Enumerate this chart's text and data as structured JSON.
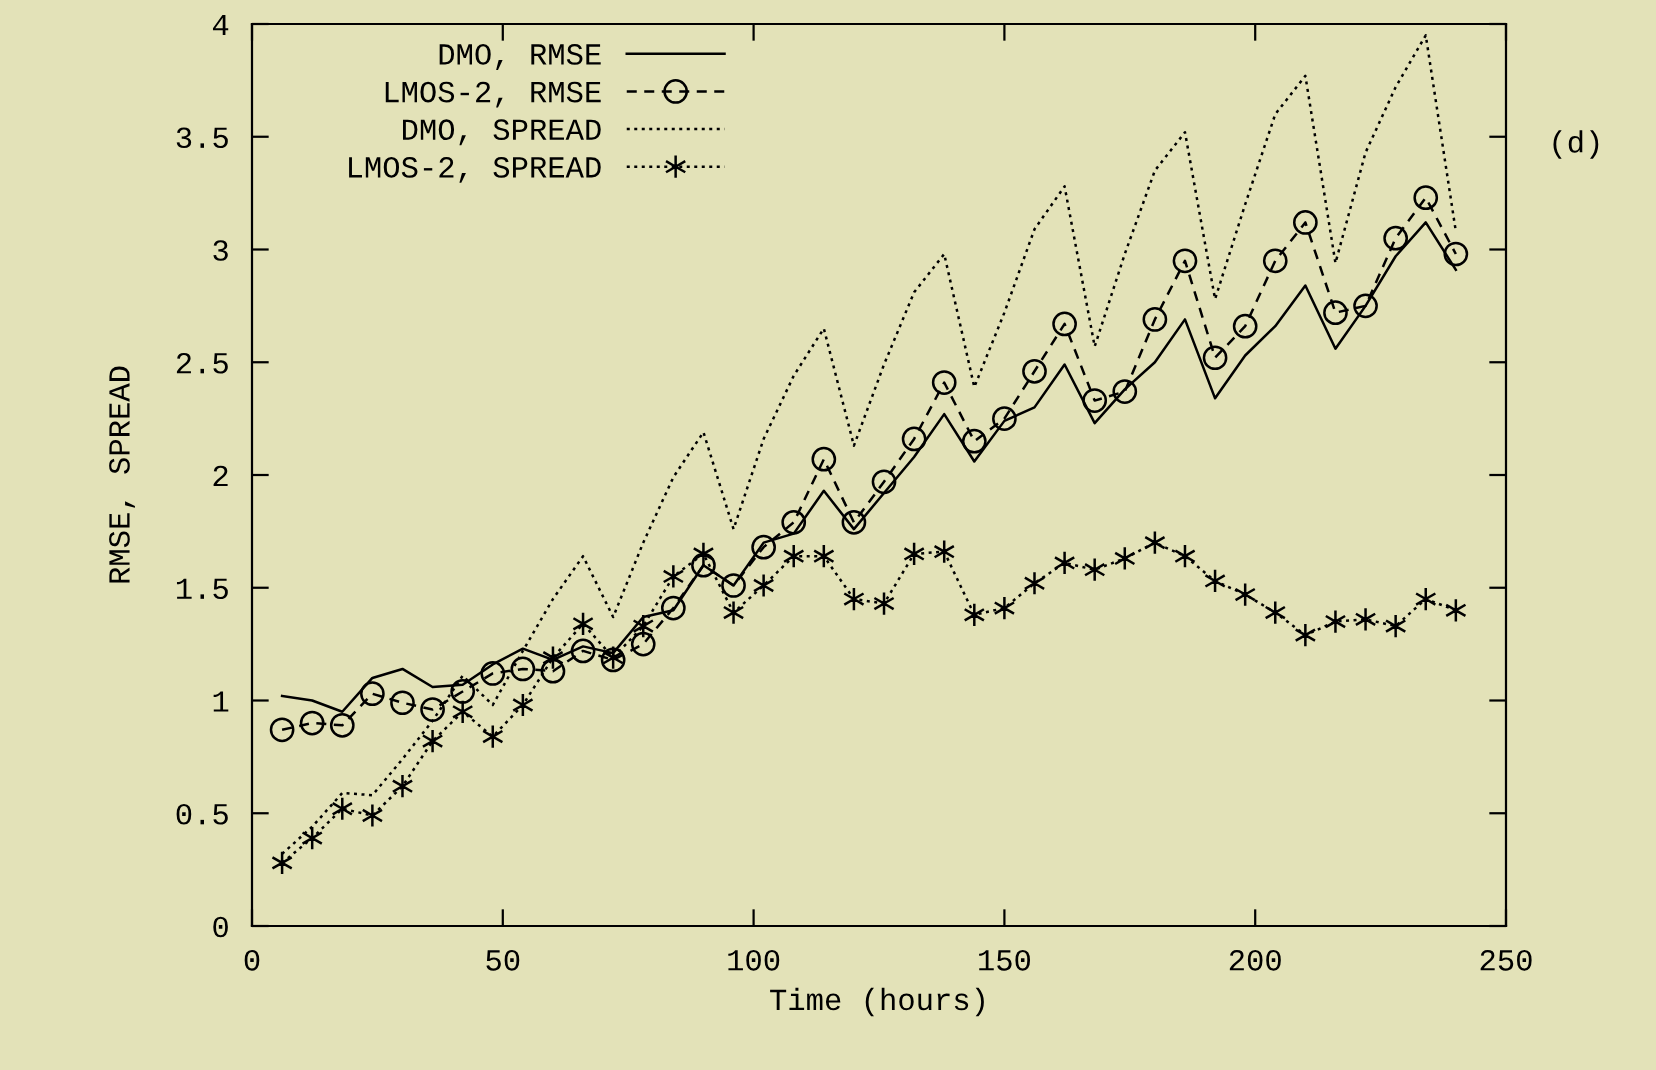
{
  "chart_data": {
    "type": "line",
    "xlabel": "Time (hours)",
    "ylabel": "RMSE, SPREAD",
    "annotations": [
      "(d)"
    ],
    "x": [
      6,
      12,
      18,
      24,
      30,
      36,
      42,
      48,
      54,
      60,
      66,
      72,
      78,
      84,
      90,
      96,
      102,
      108,
      114,
      120,
      126,
      132,
      138,
      144,
      150,
      156,
      162,
      168,
      174,
      180,
      186,
      192,
      198,
      204,
      210,
      216,
      222,
      228,
      234,
      240
    ],
    "xlim": [
      0,
      250
    ],
    "ylim": [
      0,
      4
    ],
    "xticks": [
      0,
      50,
      100,
      150,
      200,
      250
    ],
    "yticks": [
      0,
      0.5,
      1,
      1.5,
      2,
      2.5,
      3,
      3.5,
      4
    ],
    "grid": false,
    "legend": "top left",
    "series": [
      {
        "name": "DMO, RMSE",
        "color": "#000000",
        "line_style": "solid",
        "marker": "none",
        "values": [
          1.02,
          1.0,
          0.95,
          1.1,
          1.14,
          1.06,
          1.07,
          1.16,
          1.23,
          1.18,
          1.24,
          1.21,
          1.37,
          1.4,
          1.6,
          1.51,
          1.7,
          1.74,
          1.93,
          1.76,
          1.92,
          2.08,
          2.27,
          2.06,
          2.24,
          2.3,
          2.49,
          2.23,
          2.38,
          2.5,
          2.69,
          2.34,
          2.53,
          2.66,
          2.84,
          2.56,
          2.75,
          2.97,
          3.12,
          2.91
        ]
      },
      {
        "name": "LMOS-2, RMSE",
        "color": "#000000",
        "line_style": "dashed",
        "marker": "circle",
        "values": [
          0.87,
          0.9,
          0.89,
          1.03,
          0.99,
          0.96,
          1.04,
          1.12,
          1.14,
          1.13,
          1.22,
          1.18,
          1.25,
          1.41,
          1.6,
          1.51,
          1.68,
          1.79,
          2.07,
          1.79,
          1.97,
          2.16,
          2.41,
          2.15,
          2.25,
          2.46,
          2.67,
          2.33,
          2.37,
          2.69,
          2.95,
          2.52,
          2.66,
          2.95,
          3.12,
          2.72,
          2.75,
          3.05,
          3.23,
          2.98
        ]
      },
      {
        "name": "DMO, SPREAD",
        "color": "#000000",
        "line_style": "dotted",
        "marker": "none",
        "values": [
          0.32,
          0.44,
          0.59,
          0.58,
          0.74,
          0.91,
          1.11,
          0.98,
          1.22,
          1.45,
          1.64,
          1.37,
          1.7,
          1.99,
          2.19,
          1.76,
          2.16,
          2.44,
          2.65,
          2.13,
          2.49,
          2.81,
          2.98,
          2.39,
          2.72,
          3.09,
          3.28,
          2.57,
          2.98,
          3.35,
          3.52,
          2.78,
          3.2,
          3.6,
          3.77,
          2.94,
          3.43,
          3.72,
          3.95,
          3.08
        ]
      },
      {
        "name": "LMOS-2, SPREAD",
        "color": "#000000",
        "line_style": "dotted",
        "marker": "cross",
        "values": [
          0.28,
          0.39,
          0.52,
          0.49,
          0.62,
          0.82,
          0.95,
          0.84,
          0.98,
          1.19,
          1.34,
          1.19,
          1.33,
          1.55,
          1.65,
          1.39,
          1.51,
          1.64,
          1.64,
          1.45,
          1.43,
          1.65,
          1.66,
          1.38,
          1.41,
          1.52,
          1.61,
          1.58,
          1.63,
          1.7,
          1.64,
          1.53,
          1.47,
          1.39,
          1.29,
          1.35,
          1.36,
          1.33,
          1.45,
          1.4
        ]
      }
    ]
  }
}
